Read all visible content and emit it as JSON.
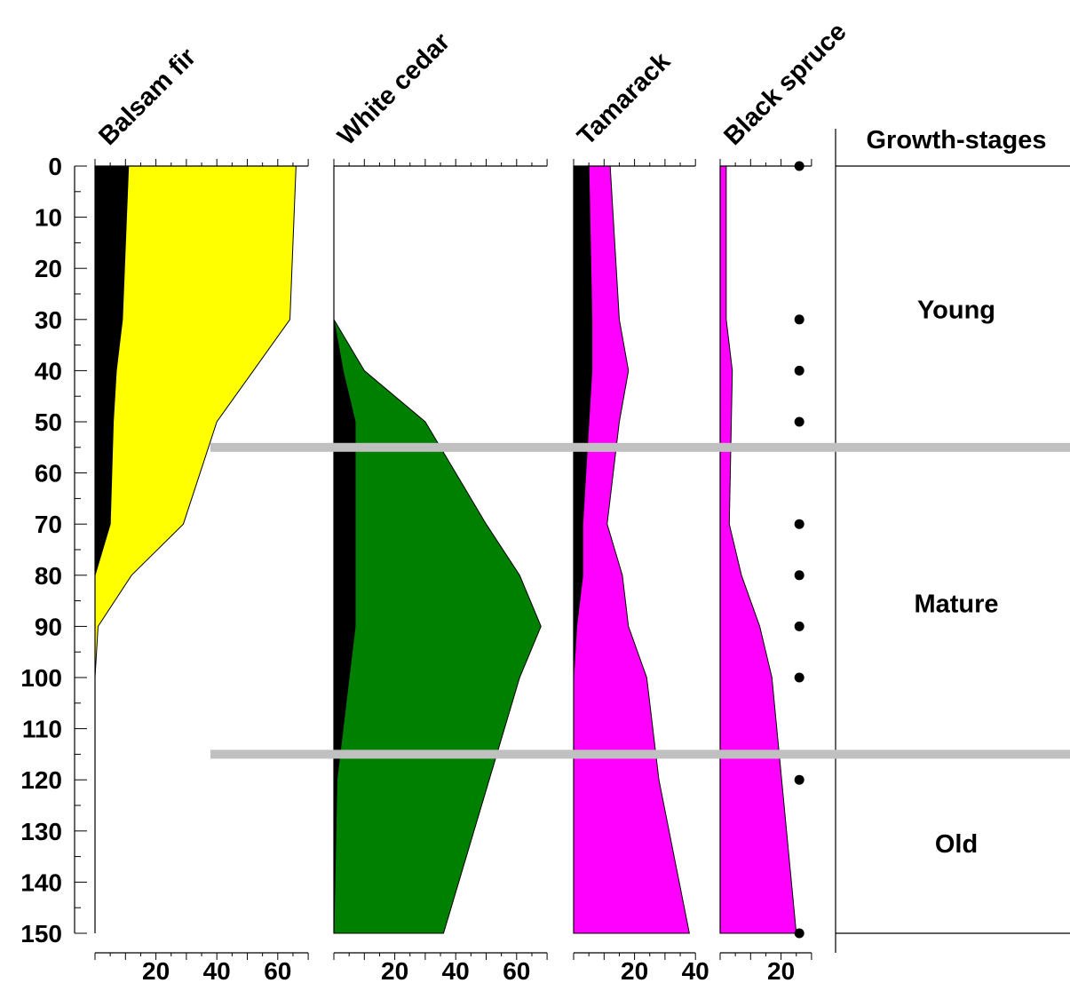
{
  "chart_data": {
    "type": "area",
    "subtype": "stratigraphic-diagram",
    "y_axis": {
      "ticks": [
        0,
        10,
        20,
        30,
        40,
        50,
        60,
        70,
        80,
        90,
        100,
        110,
        120,
        130,
        140,
        150
      ],
      "range": [
        0,
        150
      ],
      "inverted": true
    },
    "panels": [
      {
        "name": "Balsam fir",
        "fill": "#ffff00",
        "xlim": [
          0,
          70
        ],
        "x_ticks": [
          20,
          40,
          60
        ],
        "depths": [
          0,
          30,
          40,
          50,
          70,
          80,
          90,
          100,
          120,
          150
        ],
        "total": [
          66,
          64,
          52,
          40,
          29,
          12,
          1,
          0,
          0,
          0
        ],
        "inner": [
          11,
          9,
          7,
          6,
          5,
          0,
          0,
          0,
          0,
          0
        ]
      },
      {
        "name": "White cedar",
        "fill": "#008000",
        "xlim": [
          0,
          70
        ],
        "x_ticks": [
          20,
          40,
          60
        ],
        "depths": [
          30,
          40,
          50,
          70,
          80,
          90,
          100,
          120,
          150
        ],
        "total": [
          0,
          10,
          30,
          50,
          61,
          68,
          61,
          51,
          36
        ],
        "inner": [
          0,
          3,
          7,
          7,
          7,
          7,
          5,
          1,
          0
        ]
      },
      {
        "name": "Tamarack",
        "fill": "#ff00ff",
        "xlim": [
          0,
          40
        ],
        "x_ticks": [
          20,
          40
        ],
        "depths": [
          0,
          30,
          40,
          50,
          70,
          80,
          90,
          100,
          120,
          150
        ],
        "total": [
          12,
          15,
          18,
          15,
          11,
          16,
          18,
          24,
          28,
          38
        ],
        "inner": [
          5,
          6,
          6,
          5,
          3,
          3,
          1,
          0,
          0,
          0
        ]
      },
      {
        "name": "Black spruce",
        "fill": "#ff00ff",
        "xlim": [
          0,
          30
        ],
        "x_ticks": [
          20
        ],
        "depths": [
          0,
          30,
          40,
          70,
          80,
          90,
          100,
          150
        ],
        "total": [
          2,
          2,
          4,
          3,
          7,
          13,
          17,
          25
        ],
        "inner": [
          0,
          0,
          0,
          0,
          0,
          0,
          0,
          0
        ],
        "sample_depths": [
          0,
          30,
          40,
          50,
          70,
          80,
          90,
          100,
          120,
          150
        ],
        "sample_x": 26
      }
    ],
    "zones": {
      "header": "Growth-stages",
      "labels": [
        {
          "name": "Young",
          "depth": 28
        },
        {
          "name": "Mature",
          "depth": 85.5
        },
        {
          "name": "Old",
          "depth": 132.5
        }
      ],
      "boundaries": [
        55,
        115
      ],
      "boundary_color": "#c0c0c0"
    },
    "inner_fill": "#000000"
  }
}
